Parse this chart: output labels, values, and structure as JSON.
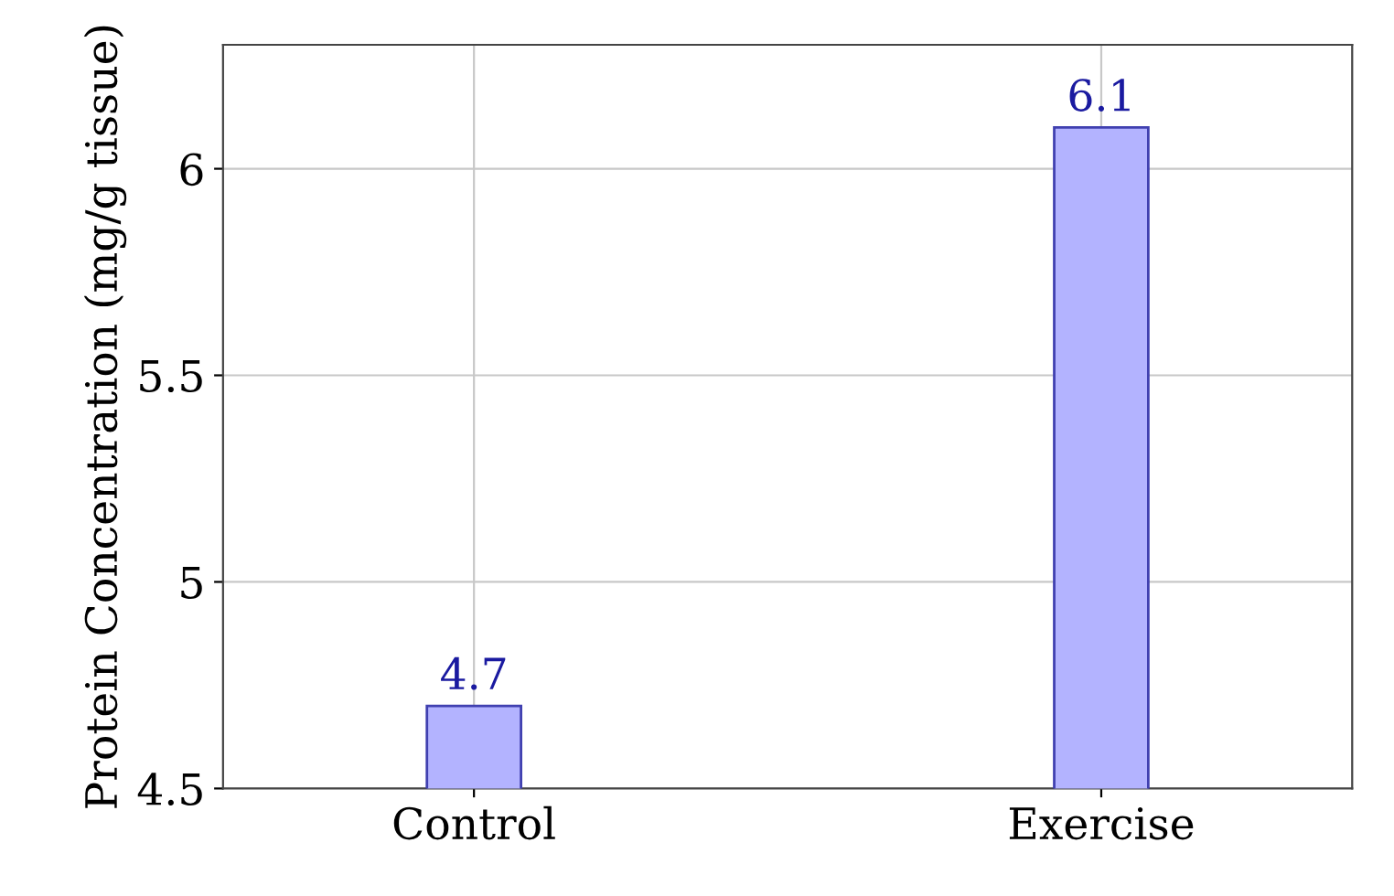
{
  "chart_data": {
    "type": "bar",
    "ylabel": "Protein Concentration (mg/g tissue)",
    "categories": [
      "Control",
      "Exercise"
    ],
    "values": [
      4.7,
      6.1
    ],
    "color": "#b3b3ff",
    "ylim": [
      4.5,
      6.3
    ],
    "yticks": [
      4.5,
      5,
      5.5,
      6
    ],
    "grid": true,
    "data_labels": true
  }
}
